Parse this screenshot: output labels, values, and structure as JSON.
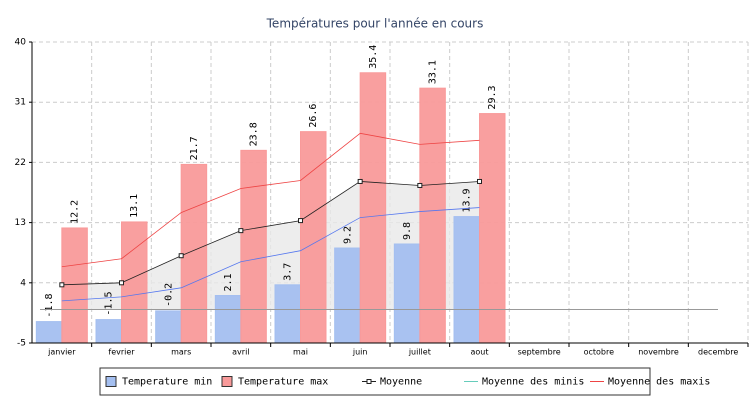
{
  "chart_data": {
    "type": "bar",
    "title": "Températures pour l'année en cours",
    "categories": [
      "janvier",
      "fevrier",
      "mars",
      "avril",
      "mai",
      "juin",
      "juillet",
      "aout",
      "septembre",
      "octobre",
      "novembre",
      "decembre"
    ],
    "series": [
      {
        "name": "Temperature min",
        "type": "bar",
        "color": "#a4bff0",
        "values": [
          -1.8,
          -1.5,
          -0.2,
          2.1,
          3.7,
          9.2,
          9.8,
          13.9,
          null,
          null,
          null,
          null
        ]
      },
      {
        "name": "Temperature max",
        "type": "bar",
        "color": "#f99a9a",
        "values": [
          12.2,
          13.1,
          21.7,
          23.8,
          26.6,
          35.4,
          33.1,
          29.3,
          null,
          null,
          null,
          null
        ]
      },
      {
        "name": "Moyenne",
        "type": "line",
        "color": "#222222",
        "area_color": "#e8e8e8",
        "markers": true,
        "values": [
          3.7,
          4.0,
          8.05,
          11.8,
          13.3,
          19.15,
          18.55,
          19.15,
          null,
          null,
          null,
          null
        ]
      },
      {
        "name": "Moyenne des minis",
        "type": "line",
        "color": "#5577ee",
        "legend_color": "#66ccbb",
        "values": [
          1.3,
          1.9,
          3.25,
          7.15,
          8.8,
          13.75,
          14.65,
          15.25,
          null,
          null,
          null,
          null
        ]
      },
      {
        "name": "Moyenne des maxis",
        "type": "line",
        "color": "#ee4444",
        "values": [
          6.4,
          7.6,
          14.5,
          18.1,
          19.3,
          26.35,
          24.7,
          25.3,
          null,
          null,
          null,
          null
        ]
      }
    ],
    "reference_line": 0,
    "ylim": [
      -5,
      40
    ],
    "yticks": [
      -5,
      4,
      13,
      22,
      31,
      40
    ],
    "grid": true,
    "legend": "bottom"
  }
}
